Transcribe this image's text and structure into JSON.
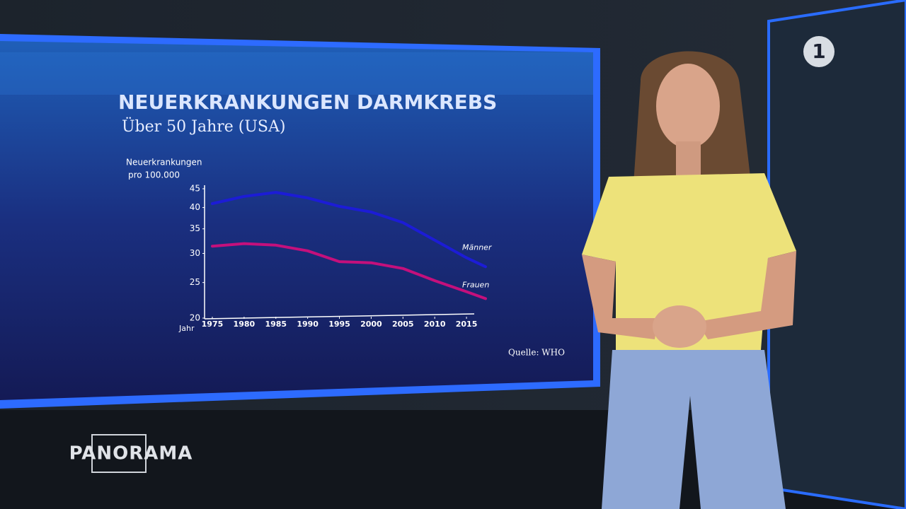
{
  "chart_data": {
    "type": "line",
    "title": "NEUERKRANKUNGEN DARMKREBS",
    "subtitle": "Über 50 Jahre (USA)",
    "ylabel": [
      "Neuerkrankungen",
      "pro 100.000"
    ],
    "xlabel": "Jahr",
    "source": "Quelle: WHO",
    "x": [
      1975,
      1980,
      1985,
      1990,
      1995,
      2000,
      2005,
      2010,
      2015,
      2018
    ],
    "series": [
      {
        "name": "Männer",
        "color": "#1c1cd6",
        "values": [
          41.0,
          42.9,
          44.0,
          42.5,
          40.3,
          38.9,
          36.4,
          32.6,
          29.2,
          27.6
        ]
      },
      {
        "name": "Frauen",
        "color": "#c4107c",
        "values": [
          31.4,
          31.9,
          31.6,
          30.5,
          28.5,
          28.3,
          27.3,
          25.3,
          23.6,
          22.6
        ]
      }
    ],
    "xlim": [
      1974,
      2018
    ],
    "xticks": [
      1975,
      1980,
      1985,
      1990,
      1995,
      2000,
      2005,
      2010,
      2015
    ],
    "ylim": [
      20,
      45
    ],
    "yticks": [
      20,
      25,
      30,
      35,
      40,
      45
    ],
    "log_scale": true,
    "grid": false
  },
  "branding": {
    "program": "PANORAMA",
    "channel": "1"
  }
}
